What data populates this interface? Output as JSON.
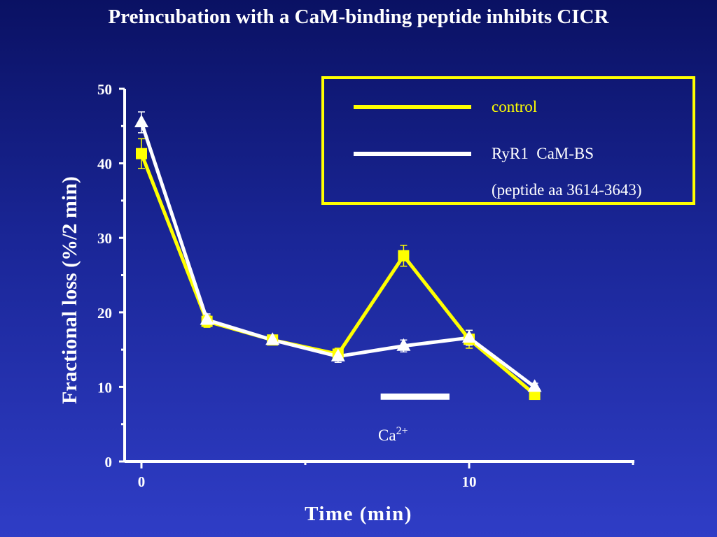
{
  "slide": {
    "title": "Preincubation with a CaM-binding peptide inhibits CICR"
  },
  "chart_data": {
    "type": "line",
    "title": "Preincubation with a CaM-binding peptide inhibits CICR",
    "xlabel": "Time (min)",
    "ylabel": "Fractional loss (%/2 min)",
    "xlim": [
      -0.5,
      15
    ],
    "ylim": [
      0,
      50
    ],
    "x_ticks": [
      0,
      10
    ],
    "x_minor_ticks": [
      5,
      15
    ],
    "y_ticks": [
      0,
      10,
      20,
      30,
      40,
      50
    ],
    "grid": false,
    "legend_position": "top-right",
    "series": [
      {
        "name": "control",
        "marker": "square",
        "color": "#ffff00",
        "x": [
          0,
          2,
          4,
          6,
          8,
          10,
          12
        ],
        "y": [
          41.3,
          18.8,
          16.3,
          14.4,
          27.6,
          16.4,
          9.0
        ],
        "err": [
          2.0,
          0.8,
          0.6,
          0.8,
          1.4,
          1.2,
          0.5
        ]
      },
      {
        "name": "RyR1  CaM-BS",
        "name_line2": "(peptide aa 3614-3643)",
        "marker": "triangle",
        "color": "#ffffff",
        "x": [
          0,
          2,
          4,
          6,
          8,
          10,
          12
        ],
        "y": [
          45.5,
          19.0,
          16.3,
          14.1,
          15.5,
          16.6,
          10.0
        ],
        "err": [
          1.4,
          0.8,
          0.6,
          0.8,
          0.8,
          1.0,
          0.5
        ]
      }
    ],
    "annotation": {
      "label": "Ca",
      "superscript": "2+",
      "bar_x": [
        7.3,
        9.4
      ],
      "bar_y": 8.7
    },
    "colors": {
      "axis": "#ffffff",
      "legend_border": "#ffff00",
      "control": "#ffff00",
      "peptide": "#ffffff"
    }
  }
}
